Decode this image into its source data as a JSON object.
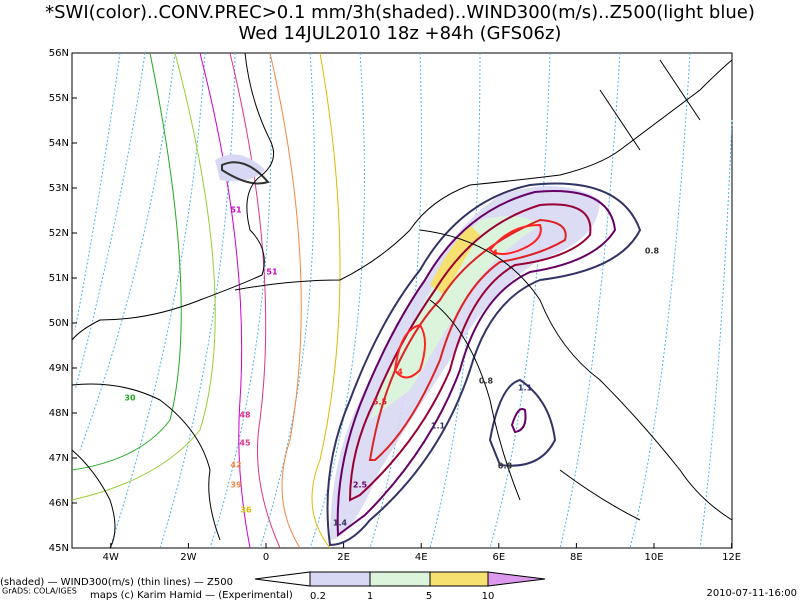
{
  "title": [
    "*SWI(color)..CONV.PREC>0.1 mm/3h(shaded)..WIND300(m/s)..Z500(light blue)",
    "Wed 14JUL2010 18z  +84h (GFS06z)"
  ],
  "lat_labels": [
    "56N",
    "55N",
    "54N",
    "53N",
    "52N",
    "51N",
    "50N",
    "49N",
    "48N",
    "47N",
    "46N",
    "45N"
  ],
  "lon_labels": [
    "4W",
    "2W",
    "0",
    "2E",
    "4E",
    "6E",
    "8E",
    "10E",
    "12E"
  ],
  "legend_labels": [
    "0.2",
    "1",
    "5",
    "10"
  ],
  "contour_labels": [
    "51",
    "51",
    "48",
    "45",
    "42",
    "39",
    "36",
    "30",
    "1.1",
    "2.5",
    "4",
    "5.5",
    "4",
    "1.1",
    "0.8",
    "0.8",
    "0.8",
    "1.4"
  ],
  "footer": {
    "line1": "(shaded) — WIND300(m/s) (thin lines) — Z500",
    "line2": "GrADS: COLA/IGES",
    "line3": "maps (c) Karim Hamid — (Experimental)",
    "timestamp": "2010-07-11-16:00"
  }
}
